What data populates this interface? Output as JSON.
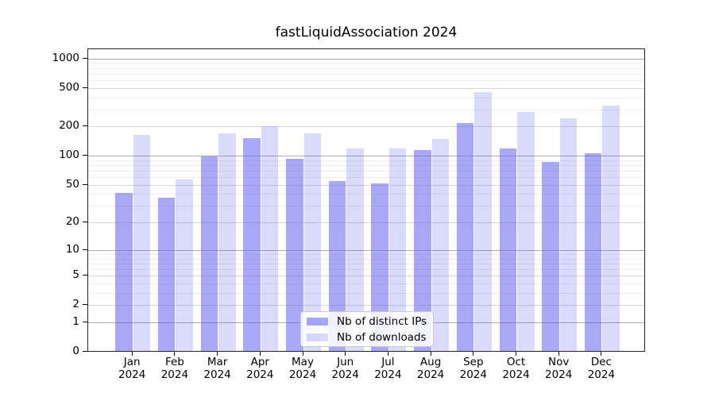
{
  "title": "fastLiquidAssociation 2024",
  "chart_data": {
    "type": "bar",
    "title": "fastLiquidAssociation 2024",
    "year_label": "2024",
    "categories": [
      "Jan",
      "Feb",
      "Mar",
      "Apr",
      "May",
      "Jun",
      "Jul",
      "Aug",
      "Sep",
      "Oct",
      "Nov",
      "Dec"
    ],
    "series": [
      {
        "name": "Nb of distinct IPs",
        "color": "rgba(100,100,240,0.56)",
        "values": [
          40,
          36,
          96,
          149,
          91,
          54,
          51,
          112,
          213,
          116,
          85,
          105
        ]
      },
      {
        "name": "Nb of downloads",
        "color": "rgba(100,100,240,0.24)",
        "values": [
          162,
          56,
          166,
          198,
          166,
          117,
          116,
          146,
          443,
          280,
          240,
          320
        ]
      }
    ],
    "yscale": "log1p",
    "ylim": [
      0,
      1300
    ],
    "y_ticks": [
      0,
      1,
      2,
      5,
      10,
      20,
      50,
      100,
      200,
      500,
      1000
    ],
    "grid": true,
    "legend_position": "lower center"
  },
  "colors": {
    "grid_decade": "#ababab",
    "grid_major": "#d7d7d7",
    "grid_minor": "#ededed",
    "axis": "#262626",
    "text": "#000000"
  }
}
